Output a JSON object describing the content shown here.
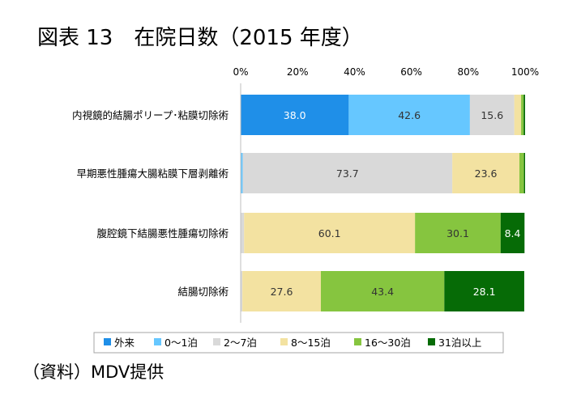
{
  "title": "図表 13　在院日数（2015 年度）",
  "source": "（資料）MDV提供",
  "colors": {
    "axis": "#bfbfbf",
    "legend_border": "#a6a6a6"
  },
  "chart_data": {
    "type": "bar",
    "stacked": true,
    "orientation": "horizontal",
    "title": "図表 13　在院日数（2015 年度）",
    "xlim": [
      0,
      100
    ],
    "x_ticks": [
      "0%",
      "20%",
      "40%",
      "60%",
      "80%",
      "100%"
    ],
    "x_tick_values": [
      0,
      20,
      40,
      60,
      80,
      100
    ],
    "grid": false,
    "legend_position": "bottom",
    "categories": [
      "内視鏡的結腸ポリープ･粘膜切除術",
      "早期悪性腫瘍大腸粘膜下層剥離術",
      "腹腔鏡下結腸悪性腫瘍切除術",
      "結腸切除術"
    ],
    "series": [
      {
        "name": "外来",
        "color": "#1f8fe8",
        "values": [
          38.0,
          0.0,
          0.0,
          0.0
        ],
        "labels": [
          "38.0",
          "",
          "",
          ""
        ],
        "label_color": "#ffffff"
      },
      {
        "name": "0～1泊",
        "color": "#66c7ff",
        "values": [
          42.6,
          0.7,
          0.0,
          0.0
        ],
        "labels": [
          "42.6",
          "",
          "",
          ""
        ],
        "label_color": "#333333"
      },
      {
        "name": "2～7泊",
        "color": "#d9d9d9",
        "values": [
          15.6,
          73.7,
          1.2,
          0.6
        ],
        "labels": [
          "15.6",
          "73.7",
          "",
          ""
        ],
        "label_color": "#333333"
      },
      {
        "name": "8～15泊",
        "color": "#f3e2a1",
        "values": [
          2.4,
          23.6,
          60.1,
          27.6
        ],
        "labels": [
          "",
          "23.6",
          "60.1",
          "27.6"
        ],
        "label_color": "#333333"
      },
      {
        "name": "16～30泊",
        "color": "#86c53f",
        "values": [
          0.9,
          1.6,
          30.1,
          43.4
        ],
        "labels": [
          "",
          "",
          "30.1",
          "43.4"
        ],
        "label_color": "#333333"
      },
      {
        "name": "31泊以上",
        "color": "#066b06",
        "values": [
          0.5,
          0.4,
          8.4,
          28.1
        ],
        "labels": [
          "",
          "",
          "8.4",
          "28.1"
        ],
        "label_color": "#ffffff"
      }
    ]
  }
}
